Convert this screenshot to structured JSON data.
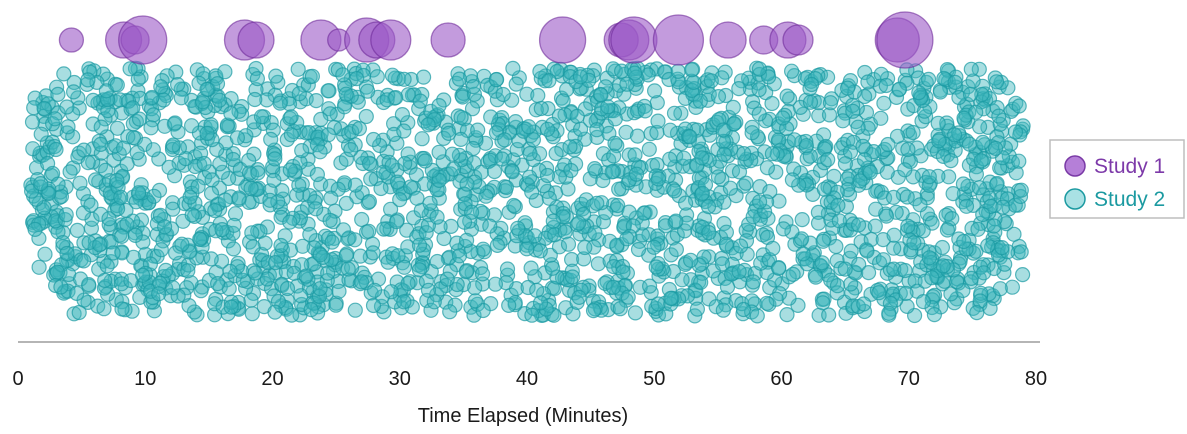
{
  "chart_data": {
    "type": "scatter",
    "xlabel": "Time Elapsed (Minutes)",
    "xlim": [
      0,
      80
    ],
    "x_ticks": [
      "0",
      "10",
      "20",
      "30",
      "40",
      "50",
      "60",
      "70",
      "80"
    ],
    "grid": false,
    "legend_placement": "right",
    "series": [
      {
        "name": "Study 1",
        "color": "#9b59c6",
        "marker": "bubble",
        "x": [
          4.2,
          8.3,
          9.2,
          9.8,
          17.8,
          18.7,
          23.8,
          25.2,
          27.4,
          28.2,
          29.3,
          33.8,
          42.8,
          47.4,
          48.0,
          48.4,
          51.9,
          55.8,
          58.6,
          60.5,
          61.3,
          69.1,
          69.7
        ],
        "size": [
          12,
          18,
          14,
          24,
          20,
          18,
          20,
          11,
          22,
          18,
          20,
          17,
          23,
          17,
          20,
          23,
          25,
          18,
          14,
          18,
          15,
          22,
          28
        ]
      },
      {
        "name": "Study 2",
        "color": "#3fb6bd",
        "marker": "dots",
        "x_range": [
          1,
          79
        ]
      }
    ]
  },
  "legend": {
    "items": [
      {
        "label": "Study 1",
        "color": "#9b59c6"
      },
      {
        "label": "Study 2",
        "color": "#1fa3ab"
      }
    ]
  }
}
